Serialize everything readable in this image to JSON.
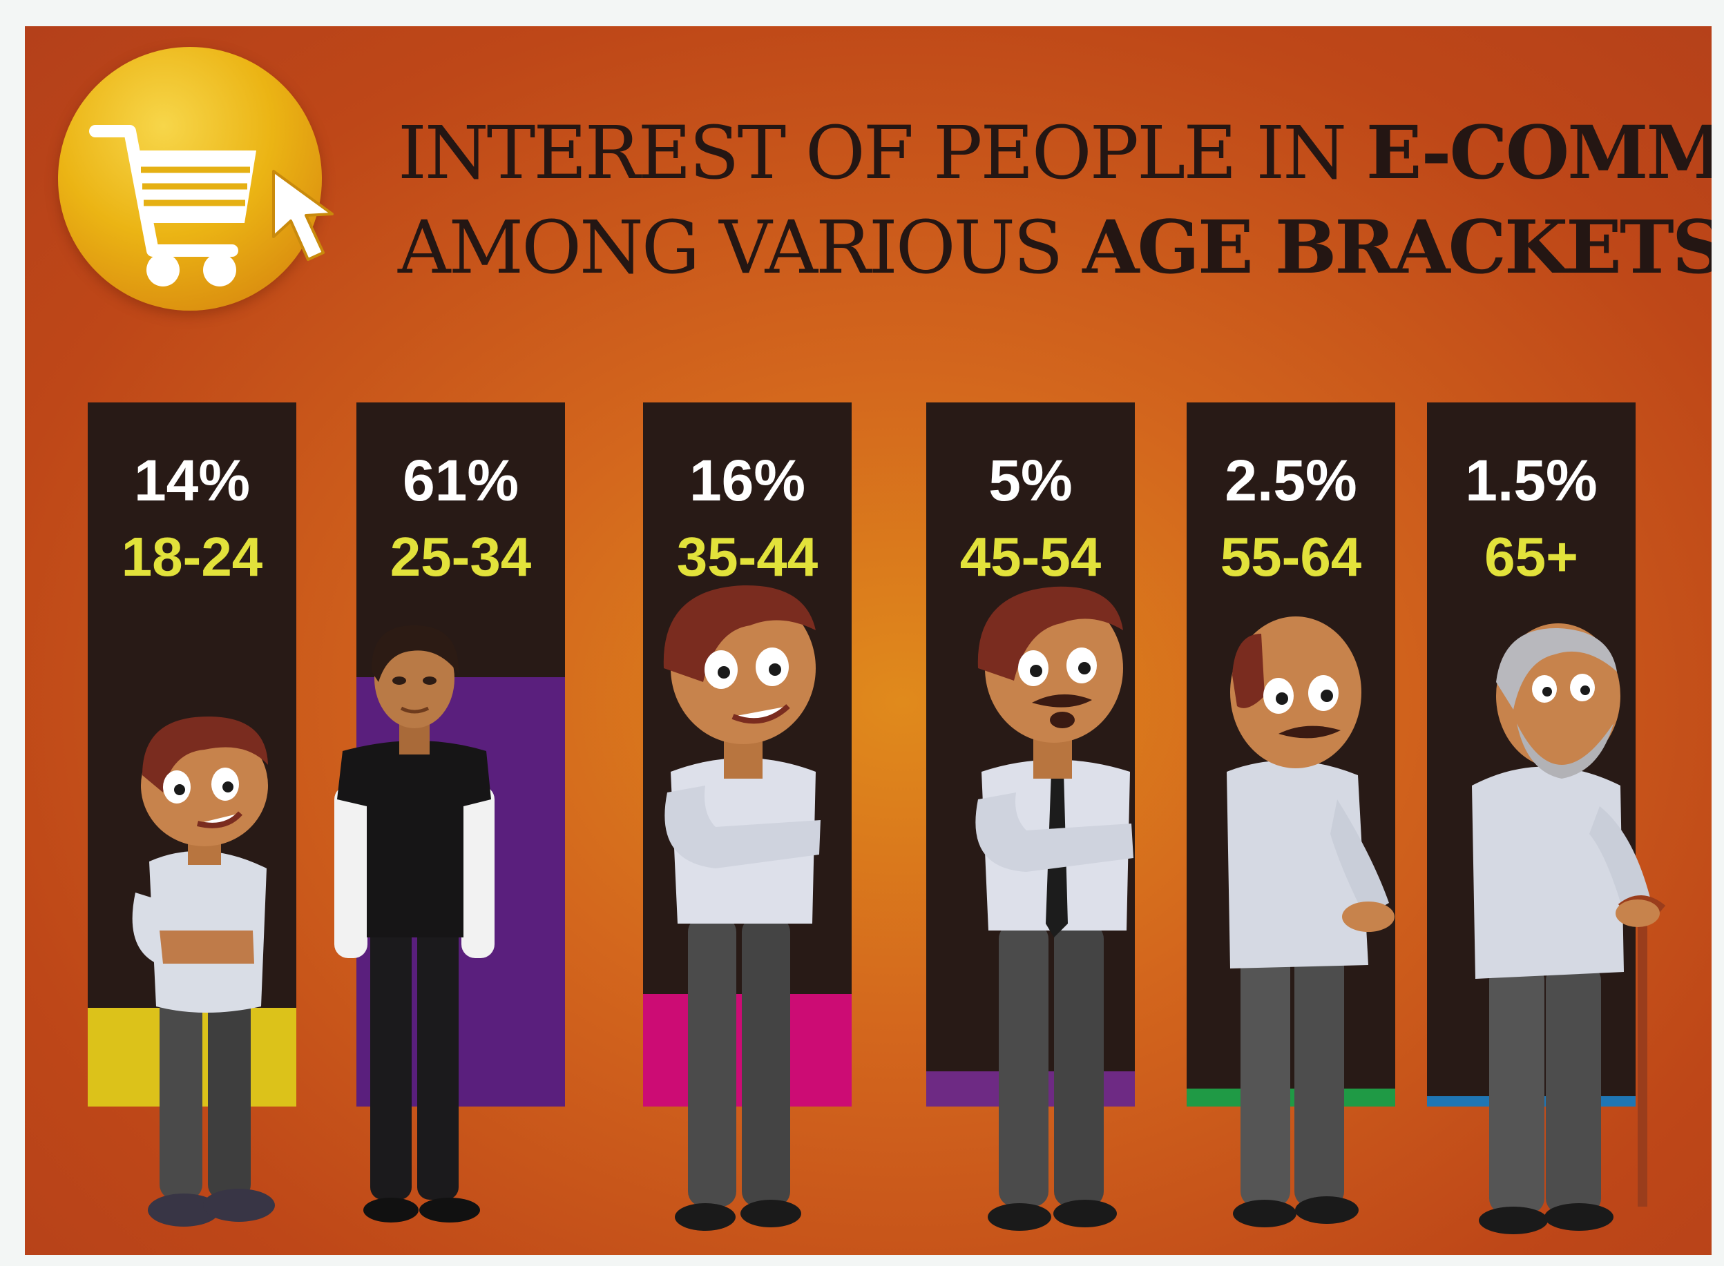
{
  "title": {
    "line1_light": "INTEREST OF PEOPLE IN ",
    "line1_bold": "E-COMMERCE",
    "line2_light": "AMONG VARIOUS ",
    "line2_bold": "AGE BRACKETS"
  },
  "icons": {
    "logo": "shopping-cart-icon",
    "pointer": "mouse-cursor-icon"
  },
  "colors": {
    "background": "#c9561b",
    "column": "#281a16",
    "percent_text": "#ffffff",
    "age_text": "#e2e23b"
  },
  "chart_data": {
    "type": "bar",
    "categories": [
      "18-24",
      "25-34",
      "35-44",
      "45-54",
      "55-64",
      "65+"
    ],
    "values": [
      14,
      61,
      16,
      5,
      2.5,
      1.5
    ],
    "value_labels": [
      "14%",
      "61%",
      "16%",
      "5%",
      "2.5%",
      "1.5%"
    ],
    "bar_colors": [
      "#dcc21a",
      "#5a1f7d",
      "#cc0c74",
      "#6e2a84",
      "#1f9a45",
      "#1f76b4"
    ],
    "title": "INTEREST OF PEOPLE IN E-COMMERCE AMONG VARIOUS AGE BRACKETS",
    "ylim": [
      0,
      100
    ]
  }
}
